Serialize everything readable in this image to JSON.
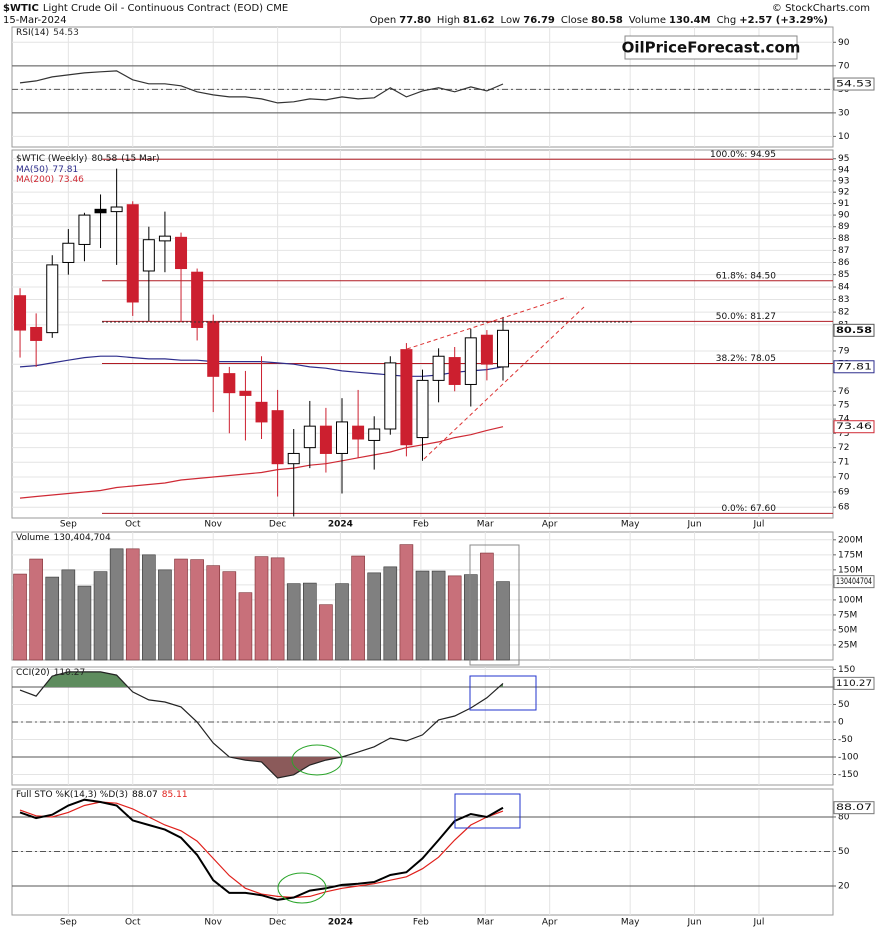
{
  "header": {
    "symbol": "$WTIC",
    "description": "Light Crude Oil - Continuous Contract (EOD) CME",
    "date": "15-Mar-2024",
    "copyright": "© StockCharts.com",
    "quote": [
      {
        "label": "Open",
        "value": "77.80"
      },
      {
        "label": "High",
        "value": "81.62"
      },
      {
        "label": "Low",
        "value": "76.79"
      },
      {
        "label": "Close",
        "value": "80.58"
      },
      {
        "label": "Volume",
        "value": "130.4M"
      },
      {
        "label": "Chg",
        "value": "+2.57 (+3.29%)"
      }
    ]
  },
  "watermark": "OilPriceForecast.com",
  "chart_data": [
    {
      "type": "line",
      "series": [
        {
          "name": "RSI(14)",
          "color": "#333333",
          "values": [
            55.5,
            57.2,
            60.6,
            62.3,
            64,
            64.9,
            65.7,
            58.1,
            54.7,
            54.7,
            53,
            47.9,
            45.3,
            43.6,
            43.6,
            41.9,
            38.5,
            39.4,
            41.9,
            41,
            43.6,
            41.9,
            42.8,
            51.3,
            43.6,
            48.7,
            51.3,
            47.9,
            52.1,
            48.7,
            54.53
          ]
        }
      ],
      "ylim": [
        1,
        103
      ],
      "yticks": [
        10,
        30,
        50,
        70,
        90
      ],
      "grid": true,
      "hlines": [
        {
          "value": 70,
          "style": "solid"
        },
        {
          "value": 50,
          "style": "dash"
        },
        {
          "value": 30,
          "style": "solid"
        }
      ]
    },
    {
      "type": "candlestick",
      "series_name": "$WTIC (Weekly)",
      "date_label": "(15 Mar)",
      "up_color": "#000000",
      "down_color": "#cc1f2f",
      "open": [
        83.3,
        80.8,
        80.4,
        86.0,
        87.5,
        90.5,
        90.3,
        90.9,
        85.3,
        87.8,
        88.1,
        85.2,
        81.2,
        77.3,
        76.0,
        75.2,
        74.6,
        70.9,
        72.0,
        73.5,
        71.6,
        73.5,
        72.5,
        73.3,
        79.1,
        72.7,
        76.8,
        78.5,
        76.5,
        80.2,
        77.8
      ],
      "high": [
        83.9,
        81.9,
        86.6,
        88.8,
        90.2,
        91.8,
        94.1,
        91.2,
        89.0,
        90.3,
        88.5,
        85.5,
        81.8,
        77.8,
        77.5,
        78.6,
        76.1,
        73.3,
        75.3,
        74.8,
        75.5,
        76.1,
        74.2,
        78.6,
        79.6,
        77.6,
        79.2,
        79.3,
        80.7,
        80.6,
        81.62
      ],
      "low": [
        78.5,
        77.8,
        80.0,
        85.0,
        86.1,
        87.2,
        85.8,
        81.7,
        81.3,
        85.2,
        81.2,
        79.8,
        74.5,
        73.0,
        72.5,
        72.6,
        68.7,
        67.4,
        70.6,
        70.3,
        68.9,
        71.3,
        70.5,
        72.9,
        71.4,
        71.1,
        75.2,
        76.0,
        74.9,
        76.8,
        76.79
      ],
      "close": [
        80.6,
        79.8,
        85.8,
        87.6,
        90.0,
        90.2,
        90.7,
        82.8,
        87.9,
        88.2,
        85.5,
        80.8,
        77.1,
        75.9,
        75.7,
        73.8,
        70.9,
        71.6,
        73.5,
        71.6,
        73.8,
        72.6,
        73.3,
        78.1,
        72.2,
        76.8,
        78.6,
        76.5,
        80.0,
        78.01,
        80.58
      ],
      "overlays": [
        {
          "name": "MA(50)",
          "color": "#2e2e8c",
          "values": [
            77.8,
            77.9,
            78.1,
            78.3,
            78.5,
            78.6,
            78.6,
            78.5,
            78.4,
            78.4,
            78.3,
            78.3,
            78.2,
            78.2,
            78.2,
            78.2,
            78.1,
            78.0,
            77.8,
            77.7,
            77.5,
            77.4,
            77.3,
            77.2,
            77.1,
            77.1,
            77.2,
            77.4,
            77.5,
            77.6,
            77.81
          ]
        },
        {
          "name": "MA(200)",
          "color": "#cf2a35",
          "values": [
            68.6,
            68.7,
            68.8,
            68.9,
            69.0,
            69.1,
            69.3,
            69.4,
            69.5,
            69.6,
            69.8,
            69.9,
            70.0,
            70.1,
            70.2,
            70.3,
            70.5,
            70.6,
            70.8,
            70.9,
            71.1,
            71.3,
            71.5,
            71.7,
            72.0,
            72.2,
            72.4,
            72.7,
            72.9,
            73.2,
            73.46
          ]
        }
      ],
      "fib_levels": [
        {
          "value": 94.95,
          "label": "100.0%: 94.95"
        },
        {
          "value": 84.5,
          "label": "61.8%: 84.50"
        },
        {
          "value": 81.27,
          "label": "50.0%: 81.27"
        },
        {
          "value": 78.05,
          "label": "38.2%: 78.05"
        },
        {
          "value": 67.6,
          "label": "0.0%: 67.60"
        }
      ],
      "fib_color": "#b01c24",
      "ylim": [
        67.3,
        95.8
      ],
      "log": true,
      "grid": true,
      "yticks": [
        68,
        69,
        70,
        71,
        72,
        73,
        74,
        75,
        76,
        78,
        79,
        81,
        82,
        83,
        84,
        85,
        86,
        87,
        88,
        89,
        90,
        91,
        92,
        93,
        94,
        95
      ],
      "xlim": [
        -0.5,
        50.5
      ],
      "xticks": [
        {
          "value": 3.0,
          "label": "Sep"
        },
        {
          "value": 7.0,
          "label": "Oct"
        },
        {
          "value": 12.0,
          "label": "Nov"
        },
        {
          "value": 16.0,
          "label": "Dec"
        },
        {
          "value": 19.9,
          "label": "2024"
        },
        {
          "value": 24.9,
          "label": "Feb"
        },
        {
          "value": 28.9,
          "label": "Mar"
        },
        {
          "value": 32.9,
          "label": "Apr"
        },
        {
          "value": 37.9,
          "label": "May"
        },
        {
          "value": 41.9,
          "label": "Jun"
        },
        {
          "value": 45.9,
          "label": "Jul"
        }
      ]
    },
    {
      "type": "bar",
      "series_name": "Volume",
      "up_color": "#808080",
      "down_color": "#c8707a",
      "values": [
        143000000,
        168000000,
        138000000,
        150000000,
        123000000,
        147000000,
        185000000,
        185000000,
        175000000,
        150000000,
        168000000,
        167000000,
        157000000,
        147000000,
        112000000,
        172000000,
        170000000,
        127000000,
        128000000,
        92000000,
        127000000,
        173000000,
        145000000,
        155000000,
        192000000,
        148000000,
        148000000,
        140000000,
        142000000,
        178000000,
        130404704
      ],
      "value_labels": [
        null,
        null,
        null,
        null,
        null,
        null,
        null,
        null,
        null,
        null,
        null,
        null,
        null,
        null,
        null,
        null,
        null,
        null,
        null,
        null,
        null,
        null,
        null,
        null,
        null,
        null,
        null,
        null,
        null,
        null,
        "130,404,704"
      ],
      "ylim": [
        0,
        213000000
      ],
      "grid": true,
      "yticks": [
        {
          "value": 25000000,
          "label": "25M"
        },
        {
          "value": 50000000,
          "label": "50M"
        },
        {
          "value": 75000000,
          "label": "75M"
        },
        {
          "value": 100000000,
          "label": "100M"
        },
        {
          "value": 125000000,
          "label": "125M"
        },
        {
          "value": 150000000,
          "label": "150M"
        },
        {
          "value": 175000000,
          "label": "175M"
        },
        {
          "value": 200000000,
          "label": "200M"
        }
      ]
    },
    {
      "type": "line",
      "series": [
        {
          "name": "CCI(20)",
          "color": "#222222",
          "values": [
            91,
            74,
            131,
            143,
            143,
            143,
            134,
            86,
            63,
            57,
            43,
            0,
            -60,
            -100,
            -109,
            -114,
            -160,
            -151,
            -123,
            -109,
            -100,
            -86,
            -71,
            -46,
            -54,
            -37,
            6,
            17,
            40,
            69,
            110.27
          ]
        }
      ],
      "ylim": [
        -180,
        157
      ],
      "yticks": [
        -150,
        -100,
        -50,
        0,
        50,
        100,
        150
      ],
      "grid": true,
      "hlines": [
        {
          "value": 100,
          "style": "solid"
        },
        {
          "value": 0,
          "style": "dash"
        },
        {
          "value": -100,
          "style": "solid"
        }
      ],
      "fills": [
        {
          "above": 100,
          "color": "#5e8c5e"
        },
        {
          "below": -100,
          "color": "#8b5a5a"
        }
      ]
    },
    {
      "type": "line",
      "series": [
        {
          "name": "Full STO %K(14,3) %D(3)",
          "color": "#000000",
          "width": 2,
          "values": [
            84,
            79,
            82,
            90,
            95,
            93,
            90,
            77,
            73,
            69,
            62,
            47,
            25,
            14,
            14,
            12,
            8,
            10,
            16,
            18,
            21,
            22,
            23.5,
            29.6,
            32,
            44,
            60,
            76.5,
            82.6,
            80,
            88.07
          ]
        },
        {
          "color": "#e0201b",
          "width": 1.2,
          "values": [
            86,
            81,
            80,
            84,
            90,
            93,
            92,
            87,
            80,
            73,
            68,
            59,
            44,
            29,
            18,
            13,
            11,
            10,
            11,
            15,
            18,
            20,
            22,
            25,
            28,
            35,
            45,
            60,
            73,
            80,
            85.11
          ]
        }
      ],
      "ylim": [
        -5.2,
        104.3
      ],
      "yticks": [
        20,
        50,
        80
      ],
      "grid": true,
      "hlines": [
        {
          "value": 80,
          "style": "solid"
        },
        {
          "value": 50,
          "style": "dash"
        },
        {
          "value": 20,
          "style": "solid"
        }
      ]
    }
  ]
}
